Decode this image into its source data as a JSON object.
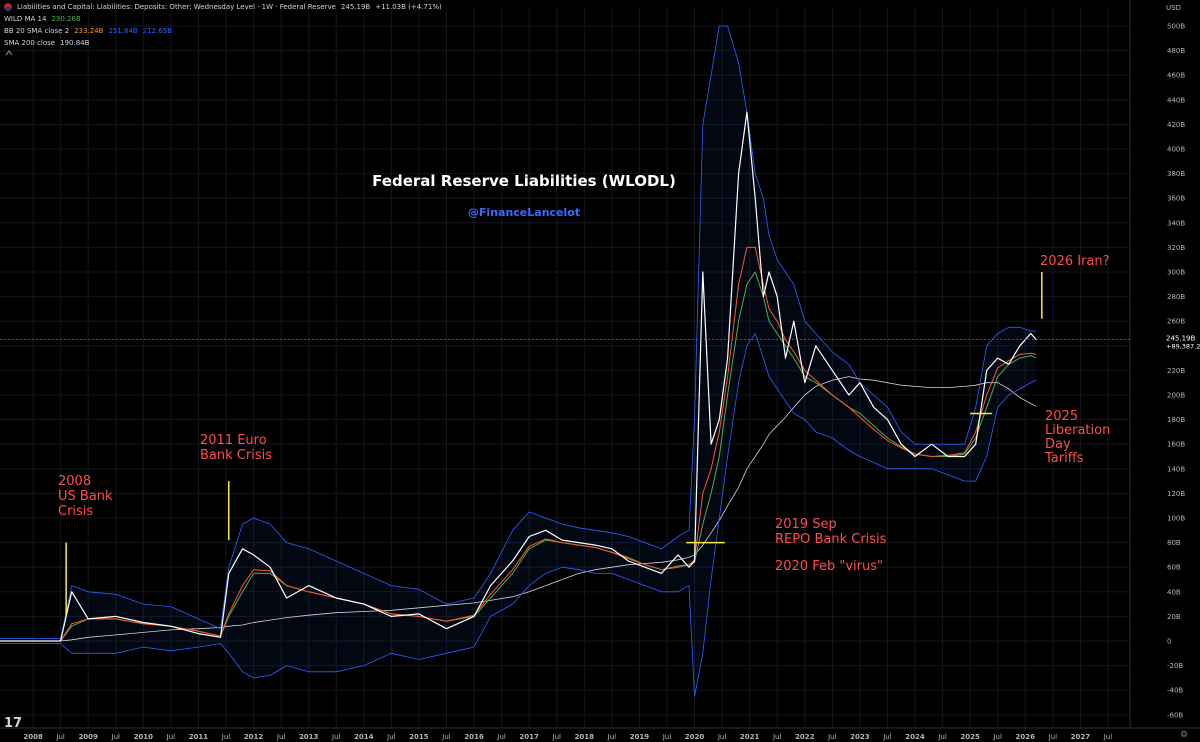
{
  "header": {
    "series_title": "Liabilities and Capital: Liabilities: Deposits: Other: Wednesday Level · 1W · Federal Reserve",
    "last_value": "245.19B",
    "change": "+11.03B (+4.71%)",
    "indicators": [
      {
        "label": "WILD MA 14",
        "values": [
          {
            "text": "230.26B",
            "color": "#4caf50"
          }
        ]
      },
      {
        "label": "BB 20 SMA close 2",
        "values": [
          {
            "text": "233.24B",
            "color": "#ff9800"
          },
          {
            "text": "251.84B",
            "color": "#2962ff"
          },
          {
            "text": "212.65B",
            "color": "#2962ff"
          }
        ]
      },
      {
        "label": "SMA 200 close",
        "values": [
          {
            "text": "190.84B",
            "color": "#d1d4dc"
          }
        ]
      }
    ]
  },
  "price_scale": {
    "currency": "USD",
    "ticks": [
      "500B",
      "480B",
      "460B",
      "440B",
      "420B",
      "400B",
      "380B",
      "360B",
      "340B",
      "320B",
      "300B",
      "280B",
      "260B",
      "240B",
      "220B",
      "200B",
      "180B",
      "160B",
      "140B",
      "120B",
      "100B",
      "80B",
      "60B",
      "40B",
      "20B",
      "0",
      "-20B",
      "-40B",
      "-60B"
    ],
    "last_label": "WLODL",
    "last_value": "245.19B",
    "last_change": "+89,387.23%"
  },
  "time_axis": {
    "ticks": [
      "2008",
      "Jul",
      "2009",
      "Jul",
      "2010",
      "Jul",
      "2011",
      "Jul",
      "2012",
      "Jul",
      "2013",
      "Jul",
      "2014",
      "Jul",
      "2015",
      "Jul",
      "2016",
      "Jul",
      "2017",
      "Jul",
      "2018",
      "Jul",
      "2019",
      "Jul",
      "2020",
      "Jul",
      "2021",
      "Jul",
      "2022",
      "Jul",
      "2023",
      "Jul",
      "2024",
      "Jul",
      "2025",
      "Jul",
      "2026",
      "Jul",
      "2027",
      "Jul"
    ]
  },
  "chart_data": {
    "type": "line",
    "title": "Federal Reserve Liabilities (WLODL)",
    "subtitle": "@FinanceLancelot",
    "ylim": [
      -60,
      510
    ],
    "xlim": [
      2007.4,
      2027.9
    ],
    "grid": true,
    "x": [
      2007.4,
      2008.5,
      2008.7,
      2009.0,
      2009.5,
      2010.0,
      2010.5,
      2011.0,
      2011.4,
      2011.55,
      2011.8,
      2012.0,
      2012.3,
      2012.6,
      2013.0,
      2013.5,
      2014.0,
      2014.5,
      2015.0,
      2015.5,
      2016.0,
      2016.3,
      2016.7,
      2017.0,
      2017.3,
      2017.6,
      2017.9,
      2018.2,
      2018.5,
      2018.8,
      2019.1,
      2019.4,
      2019.7,
      2019.9,
      2020.0,
      2020.15,
      2020.3,
      2020.45,
      2020.6,
      2020.8,
      2020.95,
      2021.1,
      2021.25,
      2021.35,
      2021.5,
      2021.65,
      2021.8,
      2022.0,
      2022.2,
      2022.5,
      2022.8,
      2023.0,
      2023.25,
      2023.5,
      2023.75,
      2024.0,
      2024.3,
      2024.6,
      2024.9,
      2025.1,
      2025.3,
      2025.5,
      2025.7,
      2025.9,
      2026.1,
      2026.2
    ],
    "series": [
      {
        "values": [
          0,
          0,
          40,
          18,
          20,
          15,
          12,
          6,
          3,
          55,
          75,
          70,
          60,
          35,
          45,
          35,
          30,
          20,
          22,
          10,
          20,
          45,
          65,
          85,
          90,
          82,
          80,
          78,
          75,
          65,
          60,
          55,
          70,
          60,
          65,
          300,
          160,
          180,
          230,
          380,
          430,
          360,
          280,
          300,
          280,
          230,
          260,
          210,
          240,
          220,
          200,
          210,
          190,
          180,
          160,
          150,
          160,
          150,
          150,
          160,
          220,
          230,
          225,
          240,
          250,
          245
        ],
        "color": "#ffffff"
      },
      {
        "values": [
          0,
          0,
          12,
          18,
          18,
          14,
          12,
          8,
          4,
          20,
          40,
          55,
          55,
          45,
          40,
          35,
          30,
          22,
          20,
          16,
          20,
          35,
          55,
          75,
          82,
          80,
          78,
          76,
          72,
          68,
          62,
          58,
          60,
          62,
          64,
          95,
          120,
          150,
          200,
          260,
          290,
          300,
          280,
          260,
          250,
          240,
          230,
          215,
          210,
          200,
          190,
          185,
          175,
          165,
          158,
          152,
          150,
          150,
          152,
          165,
          190,
          215,
          225,
          230,
          232,
          230
        ],
        "color": "#4caf50"
      },
      {
        "values": [
          0,
          0,
          14,
          18,
          18,
          14,
          12,
          8,
          4,
          22,
          45,
          58,
          57,
          45,
          40,
          35,
          30,
          22,
          20,
          16,
          21,
          38,
          58,
          77,
          83,
          80,
          78,
          76,
          72,
          67,
          62,
          58,
          61,
          62,
          66,
          120,
          140,
          170,
          215,
          290,
          320,
          320,
          290,
          270,
          260,
          245,
          235,
          220,
          212,
          200,
          190,
          182,
          172,
          163,
          157,
          152,
          150,
          151,
          153,
          170,
          200,
          222,
          228,
          233,
          234,
          233
        ],
        "color": "#ff5722"
      },
      {
        "values": [
          2,
          2,
          45,
          40,
          38,
          30,
          28,
          18,
          10,
          60,
          95,
          100,
          95,
          80,
          75,
          65,
          55,
          45,
          42,
          30,
          35,
          55,
          90,
          105,
          100,
          95,
          92,
          90,
          88,
          85,
          80,
          75,
          85,
          90,
          180,
          420,
          460,
          500,
          500,
          470,
          430,
          380,
          360,
          330,
          310,
          300,
          290,
          260,
          250,
          235,
          225,
          210,
          200,
          190,
          170,
          160,
          160,
          160,
          160,
          190,
          240,
          250,
          255,
          255,
          252,
          252
        ],
        "color": "#2962ff"
      },
      {
        "values": [
          -2,
          -2,
          -10,
          -10,
          -10,
          -5,
          -8,
          -5,
          -2,
          -10,
          -25,
          -30,
          -28,
          -20,
          -25,
          -25,
          -20,
          -10,
          -15,
          -10,
          -5,
          20,
          30,
          45,
          55,
          60,
          58,
          55,
          55,
          50,
          45,
          40,
          40,
          45,
          -45,
          -10,
          50,
          100,
          150,
          210,
          240,
          250,
          230,
          215,
          205,
          195,
          185,
          180,
          170,
          165,
          155,
          150,
          145,
          140,
          140,
          140,
          140,
          135,
          130,
          130,
          150,
          190,
          200,
          205,
          210,
          212
        ],
        "color": "#2962ff"
      },
      {
        "values": [
          0,
          0,
          1,
          3,
          5,
          7,
          9,
          10,
          11,
          12,
          13,
          15,
          17,
          19,
          21,
          23,
          24,
          25,
          27,
          29,
          31,
          33,
          36,
          40,
          45,
          50,
          55,
          58,
          60,
          62,
          63,
          64,
          66,
          68,
          70,
          78,
          88,
          98,
          110,
          125,
          140,
          150,
          160,
          168,
          175,
          182,
          190,
          200,
          207,
          212,
          215,
          213,
          212,
          210,
          208,
          207,
          206,
          206,
          207,
          208,
          210,
          210,
          205,
          198,
          193,
          190.84
        ],
        "color": "#d1d4dc"
      }
    ],
    "annotations": [
      {
        "text_lines": [
          "2008",
          "US Bank",
          "Crisis"
        ],
        "x": 2008.6,
        "y": 20
      },
      {
        "text_lines": [
          "2011 Euro",
          "Bank Crisis"
        ],
        "x": 2011.55,
        "y": 82
      },
      {
        "text_lines": [
          "2019 Sep",
          "REPO Bank Crisis"
        ],
        "x": 2019.5,
        "y": 80
      },
      {
        "text_lines": [
          "2020 Feb \"virus\""
        ],
        "x": 2020.55,
        "y": 60
      },
      {
        "text_lines": [
          "2025",
          "Liberation",
          "Day",
          "Tariffs"
        ],
        "x": 2025.2,
        "y": 185
      },
      {
        "text_lines": [
          "2026 Iran?"
        ],
        "x": 2026.3,
        "y": 262
      }
    ]
  }
}
